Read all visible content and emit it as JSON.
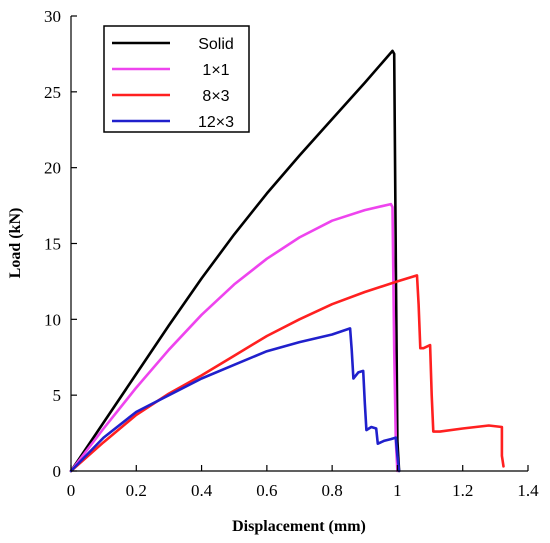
{
  "chart_data": {
    "type": "line",
    "xlabel": "Displacement (mm)",
    "ylabel": "Load (kN)",
    "xlim": [
      0,
      1.4
    ],
    "ylim": [
      0,
      30
    ],
    "xticks": [
      0,
      0.2,
      0.4,
      0.6,
      0.8,
      1,
      1.2,
      1.4
    ],
    "yticks": [
      0,
      5,
      10,
      15,
      20,
      25,
      30
    ],
    "grid": false,
    "legend_position": "top-left",
    "series": [
      {
        "name": "Solid",
        "color": "#000000",
        "x": [
          0,
          0.1,
          0.2,
          0.3,
          0.4,
          0.5,
          0.6,
          0.7,
          0.8,
          0.9,
          0.985,
          0.99,
          0.995,
          1.0,
          1.005
        ],
        "y": [
          0,
          3.2,
          6.4,
          9.6,
          12.7,
          15.6,
          18.3,
          20.8,
          23.2,
          25.6,
          27.7,
          27.5,
          14.0,
          2.0,
          0
        ]
      },
      {
        "name": "1×1",
        "color": "#ee44ee",
        "x": [
          0,
          0.1,
          0.2,
          0.3,
          0.4,
          0.5,
          0.6,
          0.7,
          0.8,
          0.9,
          0.98,
          0.985,
          0.99,
          0.995,
          1.0
        ],
        "y": [
          0,
          2.8,
          5.5,
          8.0,
          10.3,
          12.3,
          14.0,
          15.4,
          16.5,
          17.2,
          17.6,
          17.4,
          8.0,
          2.0,
          0
        ]
      },
      {
        "name": "8×3",
        "color": "#ff2020",
        "x": [
          0,
          0.1,
          0.2,
          0.3,
          0.4,
          0.5,
          0.6,
          0.7,
          0.8,
          0.9,
          1.0,
          1.06,
          1.065,
          1.07,
          1.08,
          1.1,
          1.105,
          1.11,
          1.13,
          1.2,
          1.28,
          1.32,
          1.32,
          1.325
        ],
        "y": [
          0,
          1.9,
          3.7,
          5.1,
          6.3,
          7.6,
          8.9,
          10.0,
          11.0,
          11.8,
          12.5,
          12.9,
          11.0,
          8.1,
          8.1,
          8.3,
          5.0,
          2.6,
          2.6,
          2.8,
          3.0,
          2.9,
          1.0,
          0.3
        ]
      },
      {
        "name": "12×3",
        "color": "#2020cc",
        "x": [
          0,
          0.1,
          0.2,
          0.3,
          0.4,
          0.5,
          0.6,
          0.7,
          0.8,
          0.855,
          0.86,
          0.865,
          0.88,
          0.895,
          0.9,
          0.905,
          0.92,
          0.935,
          0.94,
          0.96,
          0.98,
          0.995,
          1.0,
          1.005
        ],
        "y": [
          0,
          2.2,
          3.9,
          5.0,
          6.1,
          7.0,
          7.9,
          8.5,
          9.0,
          9.4,
          8.0,
          6.1,
          6.5,
          6.6,
          4.5,
          2.7,
          2.9,
          2.8,
          1.8,
          2.0,
          2.1,
          2.2,
          1.0,
          0
        ]
      }
    ]
  }
}
